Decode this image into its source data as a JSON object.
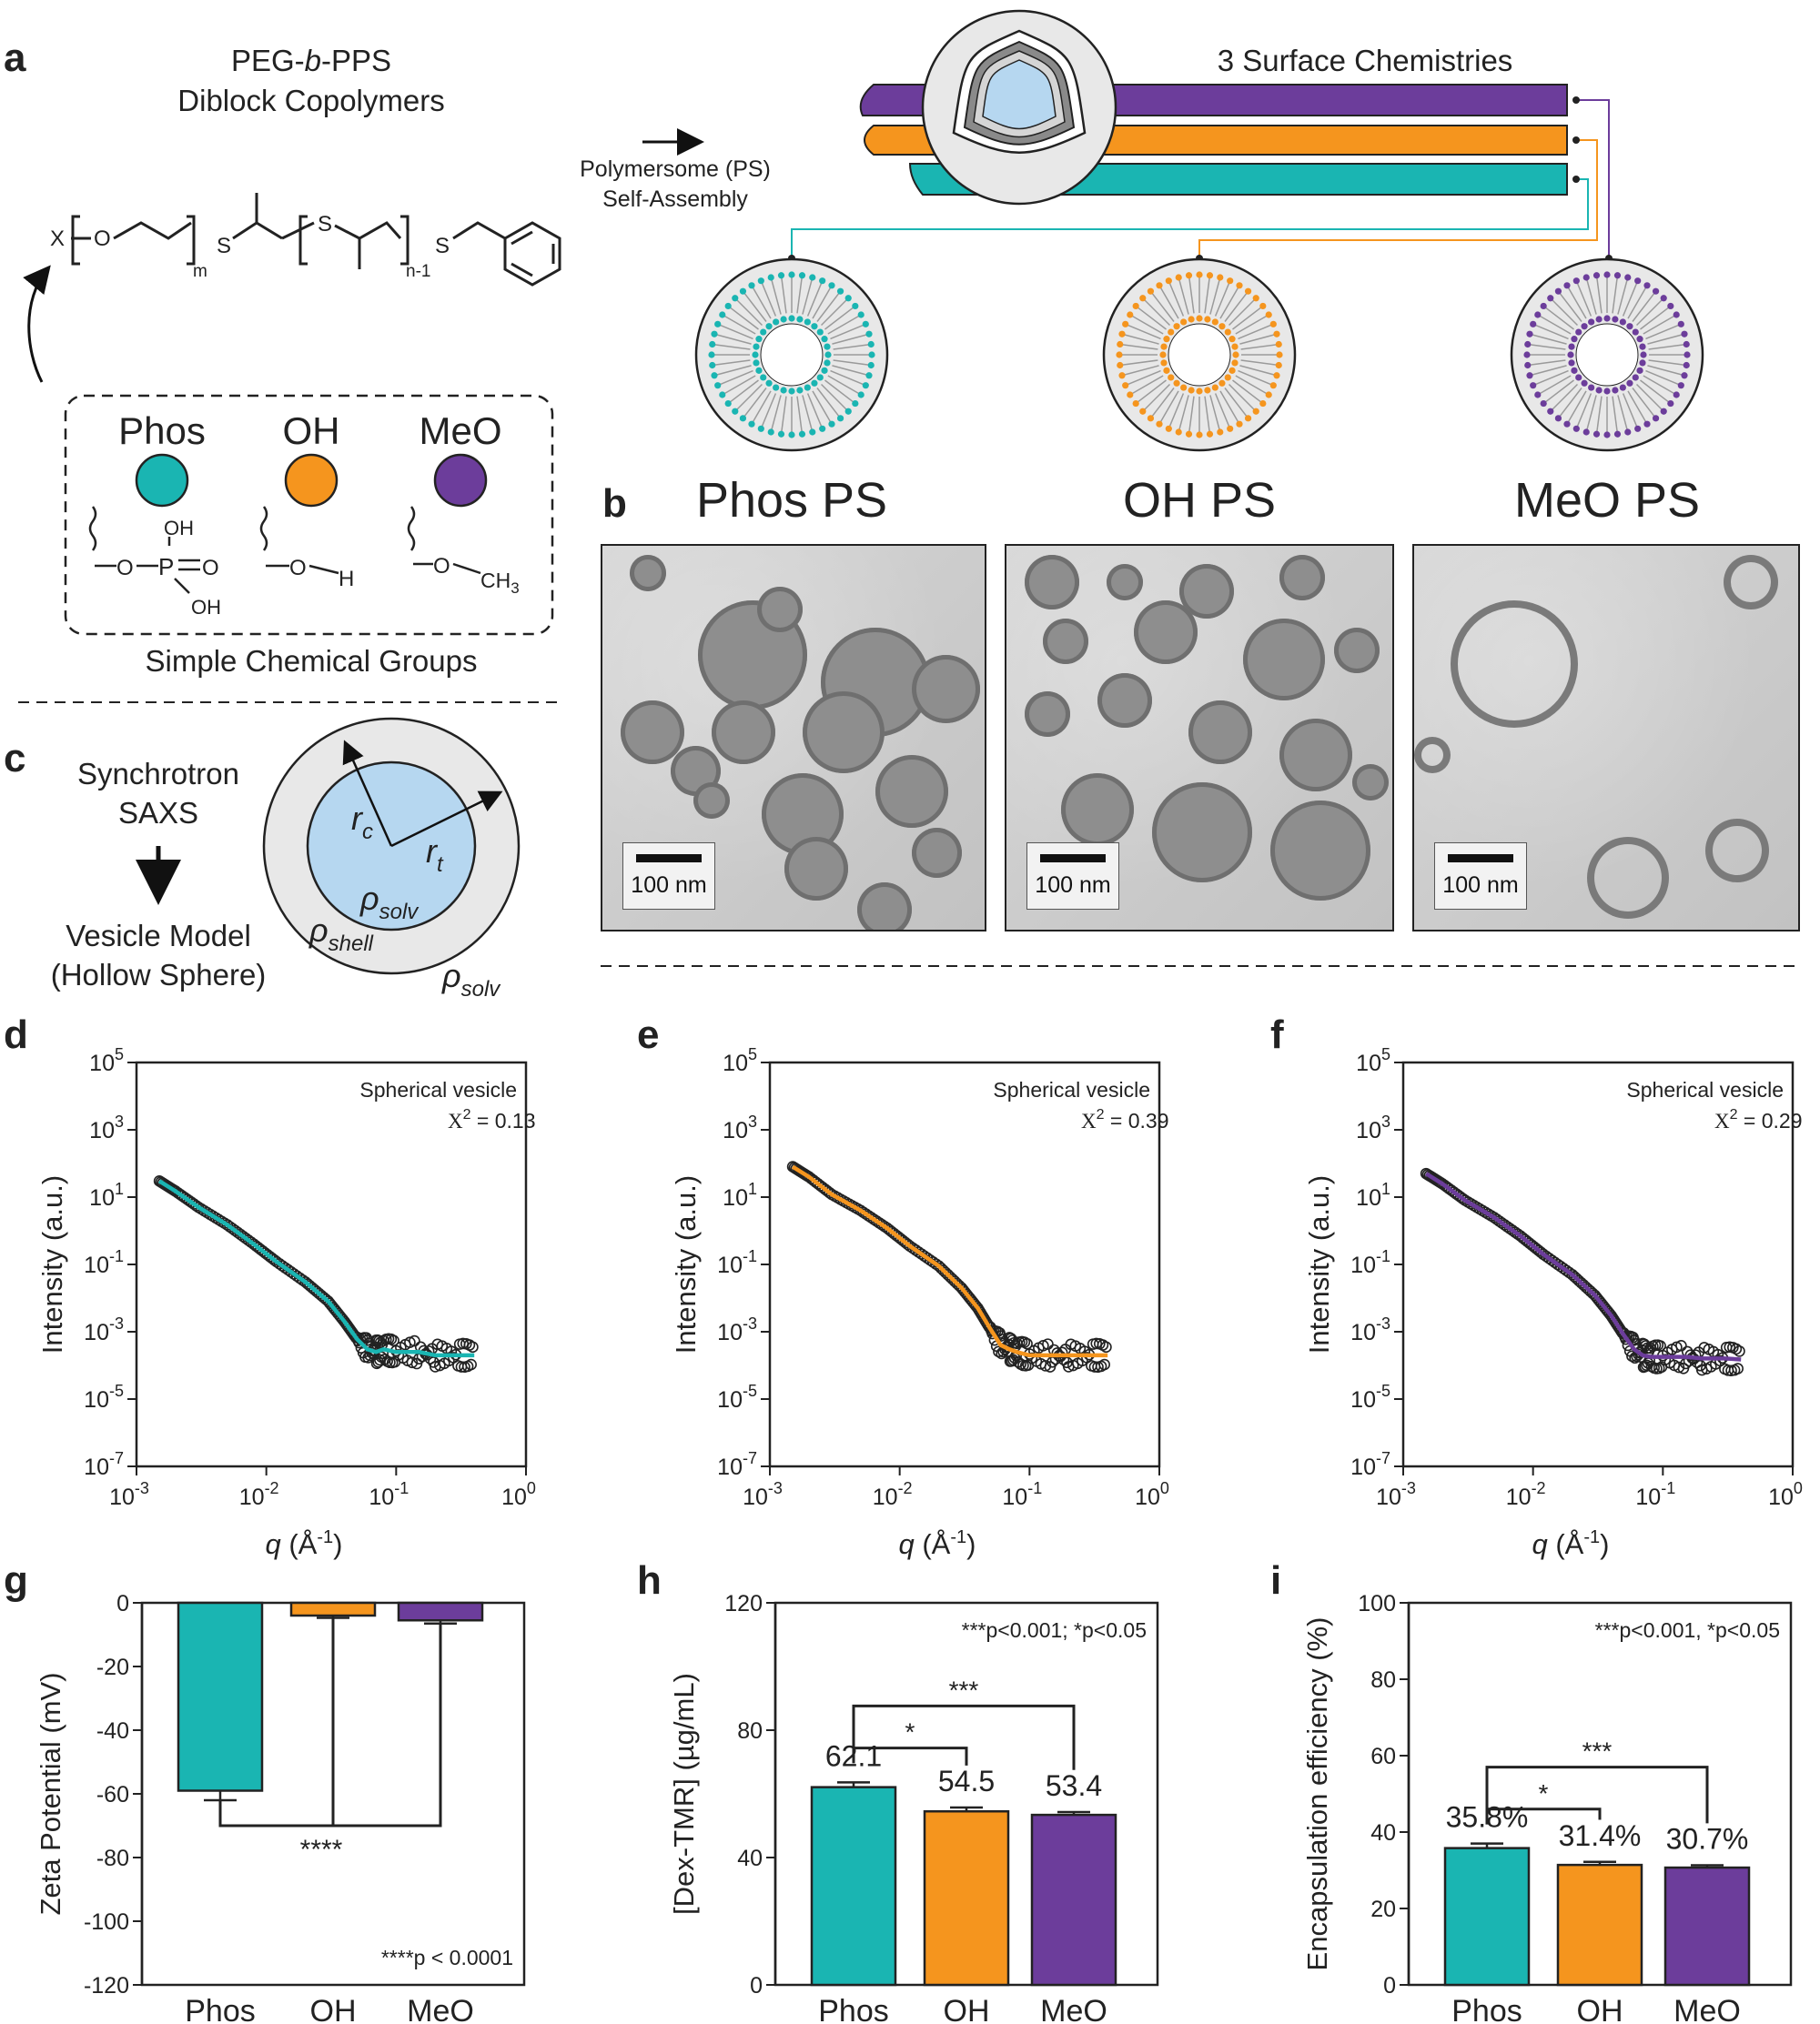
{
  "panel_labels": {
    "a": "a",
    "b": "b",
    "c": "c",
    "d": "d",
    "e": "e",
    "f": "f",
    "g": "g",
    "h": "h",
    "i": "i"
  },
  "colors": {
    "phos": "#1ab5b2",
    "oh": "#f5951e",
    "meo": "#6c3d9b",
    "core": "#b6d7f0",
    "shell": "#e8e8e8"
  },
  "panel_a": {
    "title_line1_pre": "PEG-",
    "title_line1_it": "b",
    "title_line1_post": "-PPS",
    "title_line2": "Diblock Copolymers",
    "arrow_line1": "Polymersome (PS)",
    "arrow_line2": "Self-Assembly",
    "surface_title": "3 Surface Chemistries",
    "chem_x": "X",
    "chem_m": "m",
    "chem_n": "n-1",
    "chem_s": "S",
    "groups_caption": "Simple Chemical Groups",
    "groups": [
      {
        "name": "Phos",
        "color": "#1ab5b2"
      },
      {
        "name": "OH",
        "color": "#f5951e"
      },
      {
        "name": "MeO",
        "color": "#6c3d9b"
      }
    ],
    "group_formula_atoms": {
      "o": "O",
      "p": "P",
      "oh": "OH",
      "h": "H",
      "ch3": "CH",
      "sub3": "3"
    }
  },
  "panel_b": {
    "titles": [
      "Phos PS",
      "OH PS",
      "MeO PS"
    ],
    "scalebar": "100 nm"
  },
  "panel_c": {
    "line1": "Synchrotron",
    "line2": "SAXS",
    "line3": "Vesicle Model",
    "line4": "(Hollow Sphere)",
    "rc": "r",
    "rc_sub": "c",
    "rt": "r",
    "rt_sub": "t",
    "rho": "ρ",
    "solv": "solv",
    "shell": "shell"
  },
  "saxs": [
    {
      "label": "Spherical vesicle",
      "chi": "2",
      "chi_val": " = 0.13"
    },
    {
      "label": "Spherical vesicle",
      "chi": "2",
      "chi_val": " = 0.39"
    },
    {
      "label": "Spherical vesicle",
      "chi": "2",
      "chi_val": " = 0.29"
    }
  ],
  "saxs_axes": {
    "ylabel": "Intensity (a.u.)",
    "xlabel_q": "q",
    "xlabel_unit": " (Å",
    "xlabel_sup": "-1",
    "xlabel_close": ")",
    "ytick_base": "10",
    "yticks_exp": [
      "5",
      "3",
      "1",
      "-1",
      "-3",
      "-5",
      "-7"
    ],
    "xtick_base": "10",
    "xticks_exp": [
      "-3",
      "-2",
      "-1",
      "0"
    ]
  },
  "chart_data": [
    {
      "type": "scatter",
      "panel": "d",
      "xscale": "log",
      "yscale": "log",
      "xlim": [
        0.001,
        1
      ],
      "ylim": [
        1e-07,
        100000.0
      ],
      "series": [
        {
          "x": [
            0.0015,
            0.002,
            0.003,
            0.005,
            0.008,
            0.012,
            0.02,
            0.03,
            0.04,
            0.05,
            0.06,
            0.07,
            0.08,
            0.1,
            0.15,
            0.2,
            0.3,
            0.4
          ],
          "y": [
            30,
            15,
            5,
            1.5,
            0.4,
            0.12,
            0.03,
            0.008,
            0.002,
            0.0006,
            0.0003,
            0.00025,
            0.0003,
            0.00025,
            0.00025,
            0.0002,
            0.0002,
            0.0002
          ]
        }
      ]
    },
    {
      "type": "scatter",
      "panel": "e",
      "xscale": "log",
      "yscale": "log",
      "xlim": [
        0.001,
        1
      ],
      "ylim": [
        1e-07,
        100000.0
      ],
      "series": [
        {
          "x": [
            0.0015,
            0.002,
            0.003,
            0.005,
            0.008,
            0.012,
            0.02,
            0.03,
            0.04,
            0.05,
            0.06,
            0.07,
            0.08,
            0.1,
            0.15,
            0.2,
            0.3,
            0.4
          ],
          "y": [
            80,
            40,
            12,
            4,
            1.2,
            0.35,
            0.09,
            0.02,
            0.005,
            0.0012,
            0.0004,
            0.0003,
            0.00025,
            0.0002,
            0.0002,
            0.0002,
            0.0002,
            0.0002
          ]
        }
      ]
    },
    {
      "type": "scatter",
      "panel": "f",
      "xscale": "log",
      "yscale": "log",
      "xlim": [
        0.001,
        1
      ],
      "ylim": [
        1e-07,
        100000.0
      ],
      "series": [
        {
          "x": [
            0.0015,
            0.002,
            0.003,
            0.005,
            0.008,
            0.012,
            0.02,
            0.03,
            0.04,
            0.05,
            0.06,
            0.07,
            0.08,
            0.1,
            0.15,
            0.2,
            0.3,
            0.4
          ],
          "y": [
            50,
            25,
            8,
            2.5,
            0.7,
            0.2,
            0.05,
            0.012,
            0.003,
            0.0008,
            0.0003,
            0.0002,
            0.00018,
            0.00018,
            0.00018,
            0.00016,
            0.00016,
            0.00015
          ]
        }
      ]
    },
    {
      "type": "bar",
      "panel": "g",
      "categories": [
        "Phos",
        "OH",
        "MeO"
      ],
      "values": [
        -59,
        -4,
        -5.5
      ],
      "errors": [
        3,
        0.7,
        1
      ],
      "ylabel": "Zeta Potential (mV)",
      "ylim": [
        -120,
        0
      ],
      "yticks": [
        "0",
        "-20",
        "-40",
        "-60",
        "-80",
        "-100",
        "-120"
      ],
      "annotation": "****p < 0.0001",
      "sig": "****"
    },
    {
      "type": "bar",
      "panel": "h",
      "categories": [
        "Phos",
        "OH",
        "MeO"
      ],
      "values": [
        62.1,
        54.5,
        53.4
      ],
      "errors": [
        1.5,
        1.2,
        0.9
      ],
      "labels": [
        "62.1",
        "54.5",
        "53.4"
      ],
      "ylabel": "[Dex-TMR] (µg/mL)",
      "ylim": [
        0,
        120
      ],
      "yticks": [
        "0",
        "40",
        "80",
        "120"
      ],
      "annotation": "***p<0.001; *p<0.05",
      "sig": [
        "*",
        "***"
      ]
    },
    {
      "type": "bar",
      "panel": "i",
      "categories": [
        "Phos",
        "OH",
        "MeO"
      ],
      "values": [
        35.8,
        31.4,
        30.7
      ],
      "errors": [
        1.2,
        0.8,
        0.6
      ],
      "labels": [
        "35.8%",
        "31.4%",
        "30.7%"
      ],
      "ylabel": "Encapsulation efficiency (%)",
      "ylim": [
        0,
        100
      ],
      "yticks": [
        "0",
        "20",
        "40",
        "60",
        "80",
        "100"
      ],
      "annotation": "***p<0.001, *p<0.05",
      "sig": [
        "*",
        "***"
      ]
    }
  ]
}
